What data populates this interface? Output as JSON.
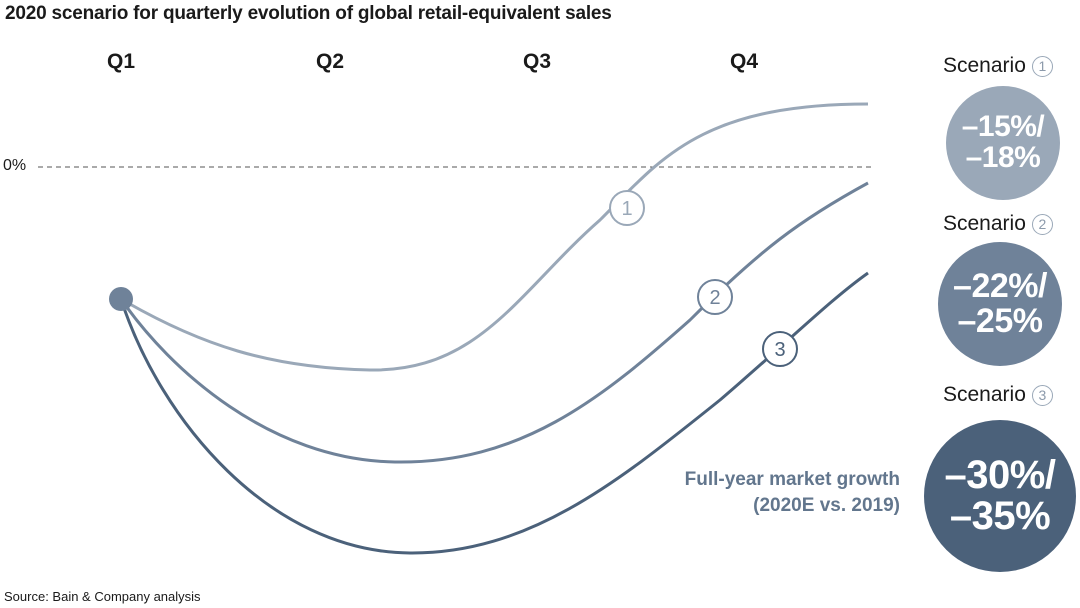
{
  "title": "2020 scenario for quarterly evolution of global retail-equivalent sales",
  "source": "Source: Bain & Company analysis",
  "chart_data": {
    "type": "line",
    "title": "2020 scenario for quarterly evolution of global retail-equivalent sales",
    "categories": [
      "Q1",
      "Q2",
      "Q3",
      "Q4"
    ],
    "baseline_label": "0%",
    "series": [
      {
        "name": "1",
        "color": "#9aa8b8"
      },
      {
        "name": "2",
        "color": "#6f8299"
      },
      {
        "name": "3",
        "color": "#4b617a"
      }
    ],
    "scenarios": [
      {
        "label": "Scenario",
        "number": "1",
        "line1": "–15%/",
        "line2": "–18%",
        "color": "#9aa8b8"
      },
      {
        "label": "Scenario",
        "number": "2",
        "line1": "–22%/",
        "line2": "–25%",
        "color": "#6f8299"
      },
      {
        "label": "Scenario",
        "number": "3",
        "line1": "–30%/",
        "line2": "–35%",
        "color": "#4b617a"
      }
    ],
    "annotation": {
      "line1": "Full-year market growth",
      "line2": "(2020E vs. 2019)"
    }
  }
}
